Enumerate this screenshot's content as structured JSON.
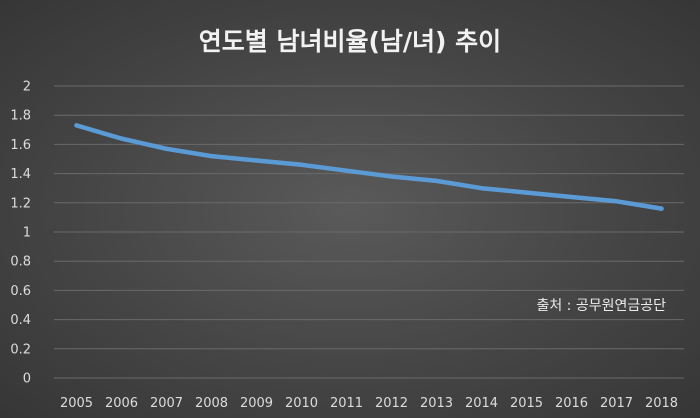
{
  "chart_data": {
    "type": "line",
    "title": "연도별 남녀비율(남/녀) 추이",
    "source_note": "출처 : 공무원연금공단",
    "xlabel": "",
    "ylabel": "",
    "ylim": [
      0,
      2
    ],
    "y_ticks": [
      "0",
      "0.2",
      "0.4",
      "0.6",
      "0.8",
      "1",
      "1.2",
      "1.4",
      "1.6",
      "1.8",
      "2"
    ],
    "categories": [
      "2005",
      "2006",
      "2007",
      "2008",
      "2009",
      "2010",
      "2011",
      "2012",
      "2013",
      "2014",
      "2015",
      "2016",
      "2017",
      "2018"
    ],
    "series": [
      {
        "values": [
          1.73,
          1.64,
          1.57,
          1.52,
          1.49,
          1.46,
          1.42,
          1.38,
          1.35,
          1.3,
          1.27,
          1.24,
          1.21,
          1.16
        ],
        "color": "#5b9bd5"
      }
    ],
    "grid": true,
    "legend": "none"
  }
}
